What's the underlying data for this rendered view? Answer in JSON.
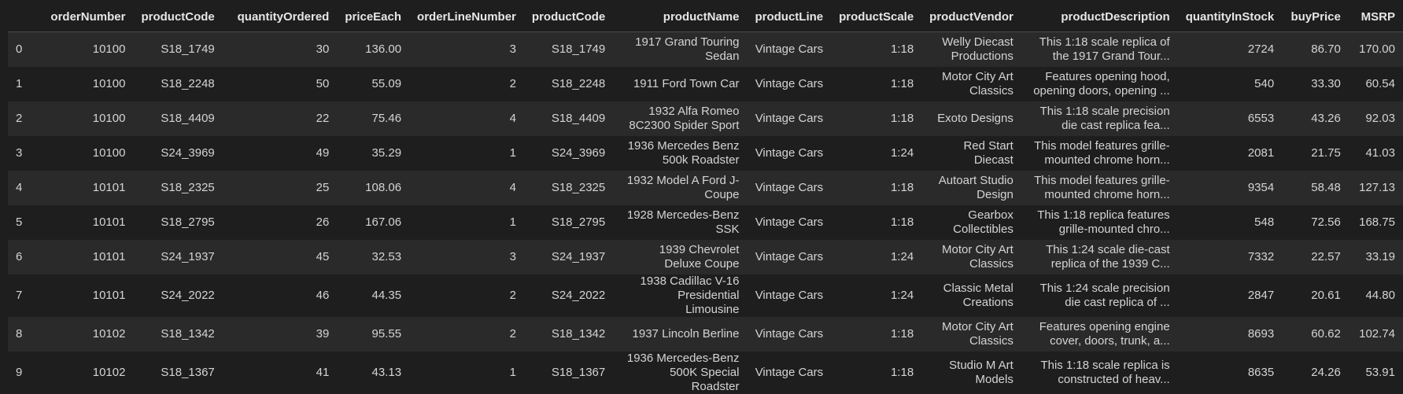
{
  "table": {
    "columns": [
      "",
      "orderNumber",
      "productCode",
      "quantityOrdered",
      "priceEach",
      "orderLineNumber",
      "productCode",
      "productName",
      "productLine",
      "productScale",
      "productVendor",
      "productDescription",
      "quantityInStock",
      "buyPrice",
      "MSRP"
    ],
    "rows": [
      [
        "0",
        "10100",
        "S18_1749",
        "30",
        "136.00",
        "3",
        "S18_1749",
        "1917 Grand Touring Sedan",
        "Vintage Cars",
        "1:18",
        "Welly Diecast Productions",
        "This 1:18 scale replica of the 1917 Grand Tour...",
        "2724",
        "86.70",
        "170.00"
      ],
      [
        "1",
        "10100",
        "S18_2248",
        "50",
        "55.09",
        "2",
        "S18_2248",
        "1911 Ford Town Car",
        "Vintage Cars",
        "1:18",
        "Motor City Art Classics",
        "Features opening hood, opening doors, opening ...",
        "540",
        "33.30",
        "60.54"
      ],
      [
        "2",
        "10100",
        "S18_4409",
        "22",
        "75.46",
        "4",
        "S18_4409",
        "1932 Alfa Romeo 8C2300 Spider Sport",
        "Vintage Cars",
        "1:18",
        "Exoto Designs",
        "This 1:18 scale precision die cast replica fea...",
        "6553",
        "43.26",
        "92.03"
      ],
      [
        "3",
        "10100",
        "S24_3969",
        "49",
        "35.29",
        "1",
        "S24_3969",
        "1936 Mercedes Benz 500k Roadster",
        "Vintage Cars",
        "1:24",
        "Red Start Diecast",
        "This model features grille-mounted chrome horn...",
        "2081",
        "21.75",
        "41.03"
      ],
      [
        "4",
        "10101",
        "S18_2325",
        "25",
        "108.06",
        "4",
        "S18_2325",
        "1932 Model A Ford J-Coupe",
        "Vintage Cars",
        "1:18",
        "Autoart Studio Design",
        "This model features grille-mounted chrome horn...",
        "9354",
        "58.48",
        "127.13"
      ],
      [
        "5",
        "10101",
        "S18_2795",
        "26",
        "167.06",
        "1",
        "S18_2795",
        "1928 Mercedes-Benz SSK",
        "Vintage Cars",
        "1:18",
        "Gearbox Collectibles",
        "This 1:18 replica features grille-mounted chro...",
        "548",
        "72.56",
        "168.75"
      ],
      [
        "6",
        "10101",
        "S24_1937",
        "45",
        "32.53",
        "3",
        "S24_1937",
        "1939 Chevrolet Deluxe Coupe",
        "Vintage Cars",
        "1:24",
        "Motor City Art Classics",
        "This 1:24 scale die-cast replica of the 1939 C...",
        "7332",
        "22.57",
        "33.19"
      ],
      [
        "7",
        "10101",
        "S24_2022",
        "46",
        "44.35",
        "2",
        "S24_2022",
        "1938 Cadillac V-16 Presidential Limousine",
        "Vintage Cars",
        "1:24",
        "Classic Metal Creations",
        "This 1:24 scale precision die cast replica of ...",
        "2847",
        "20.61",
        "44.80"
      ],
      [
        "8",
        "10102",
        "S18_1342",
        "39",
        "95.55",
        "2",
        "S18_1342",
        "1937 Lincoln Berline",
        "Vintage Cars",
        "1:18",
        "Motor City Art Classics",
        "Features opening engine cover, doors, trunk, a...",
        "8693",
        "60.62",
        "102.74"
      ],
      [
        "9",
        "10102",
        "S18_1367",
        "41",
        "43.13",
        "1",
        "S18_1367",
        "1936 Mercedes-Benz 500K Special Roadster",
        "Vintage Cars",
        "1:18",
        "Studio M Art Models",
        "This 1:18 scale replica is constructed of heav...",
        "8635",
        "24.26",
        "53.91"
      ]
    ]
  }
}
